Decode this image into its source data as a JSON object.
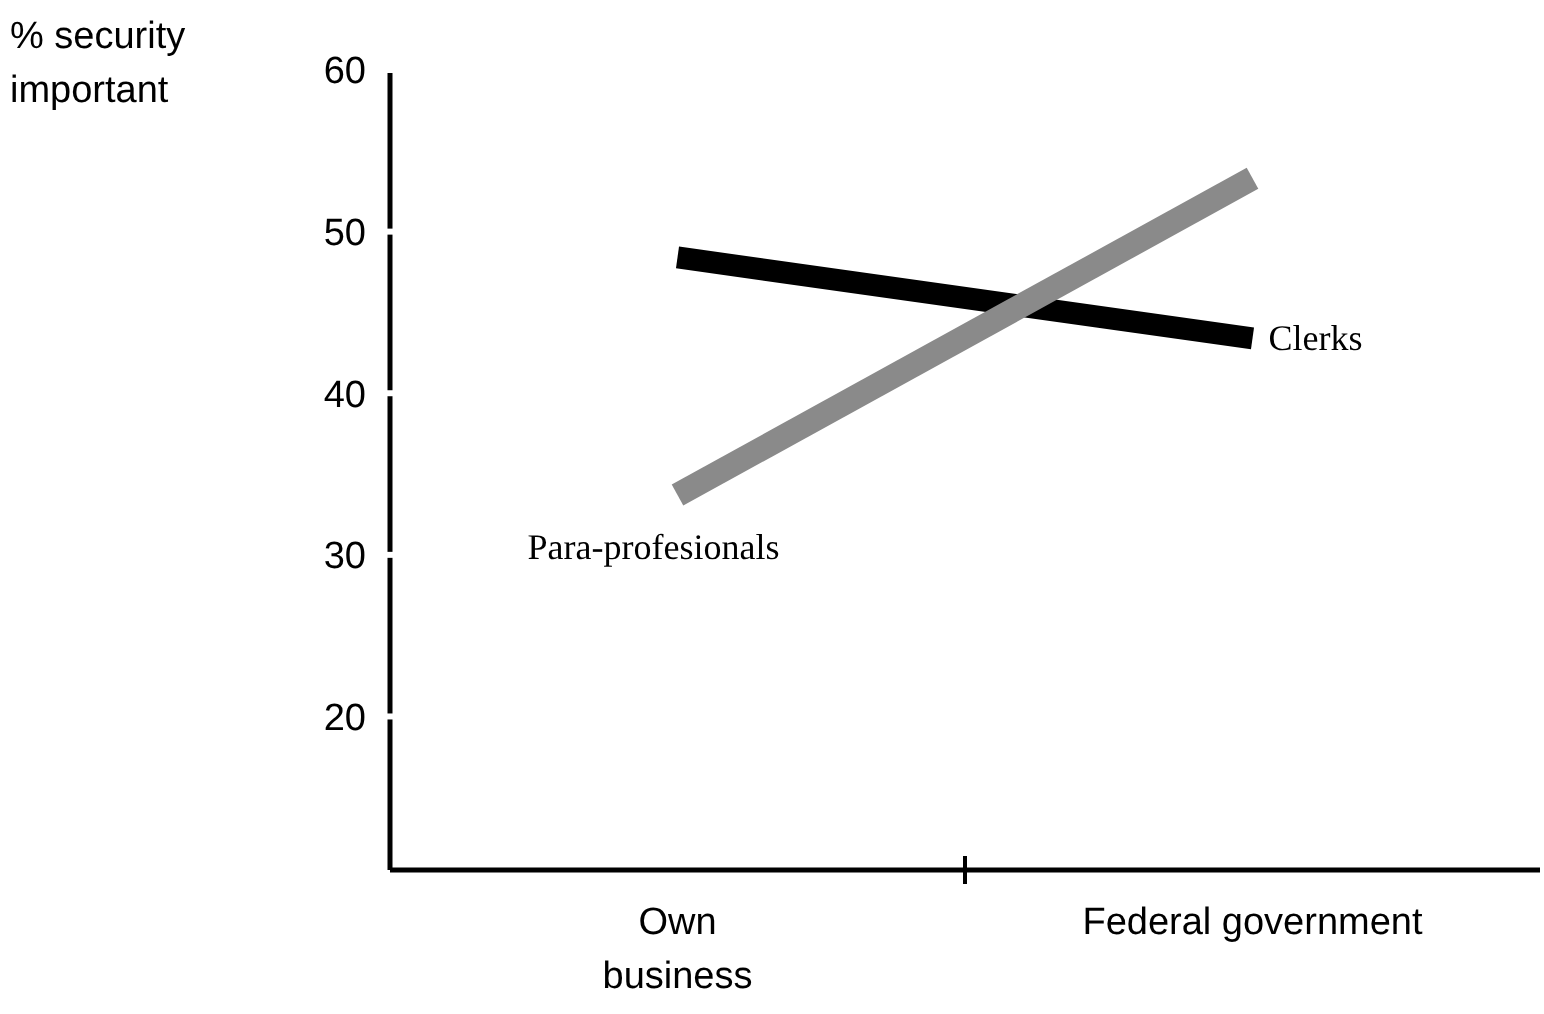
{
  "chart_data": {
    "type": "line",
    "ylabel": "% security important",
    "categories": [
      "Own business",
      "Federal government"
    ],
    "ylim": [
      10.5,
      60
    ],
    "yticks": [
      20,
      30,
      40,
      50,
      60
    ],
    "grid": false,
    "series": [
      {
        "name": "Clerks",
        "color": "#000000",
        "values": [
          48.4,
          43.4
        ]
      },
      {
        "name": "Para-profesionals",
        "color": "#8a8a8a",
        "values": [
          33.7,
          53.3
        ]
      }
    ]
  }
}
